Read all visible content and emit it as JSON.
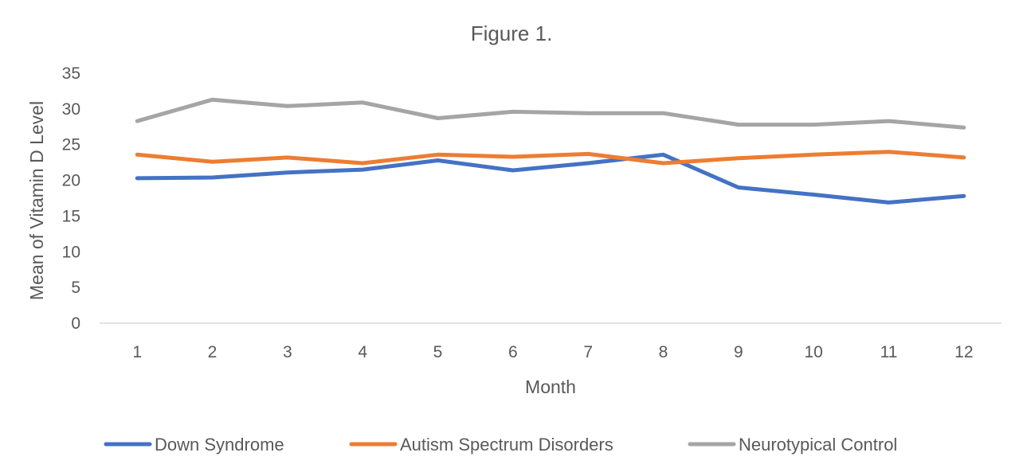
{
  "chart_data": {
    "type": "line",
    "title": "Figure 1.",
    "xlabel": "Month",
    "ylabel": "Mean of Vitamin D Level",
    "ylim": [
      0,
      35
    ],
    "yticks": [
      0,
      5,
      10,
      15,
      20,
      25,
      30,
      35
    ],
    "categories": [
      "1",
      "2",
      "3",
      "4",
      "5",
      "6",
      "7",
      "8",
      "9",
      "10",
      "11",
      "12"
    ],
    "grid": false,
    "legend": "bottom",
    "series": [
      {
        "name": "Down Syndrome",
        "color": "#4472C4",
        "values": [
          20.3,
          20.4,
          21.1,
          21.5,
          22.8,
          21.4,
          22.4,
          23.6,
          19.0,
          18.0,
          16.9,
          17.8
        ]
      },
      {
        "name": "Autism Spectrum Disorders",
        "color": "#ED7D31",
        "values": [
          23.6,
          22.6,
          23.2,
          22.4,
          23.6,
          23.3,
          23.7,
          22.4,
          23.1,
          23.6,
          24.0,
          23.2
        ]
      },
      {
        "name": "Neurotypical Control",
        "color": "#A5A5A5",
        "values": [
          28.3,
          31.3,
          30.4,
          30.9,
          28.7,
          29.6,
          29.4,
          29.4,
          27.8,
          27.8,
          28.3,
          27.4
        ]
      }
    ]
  }
}
